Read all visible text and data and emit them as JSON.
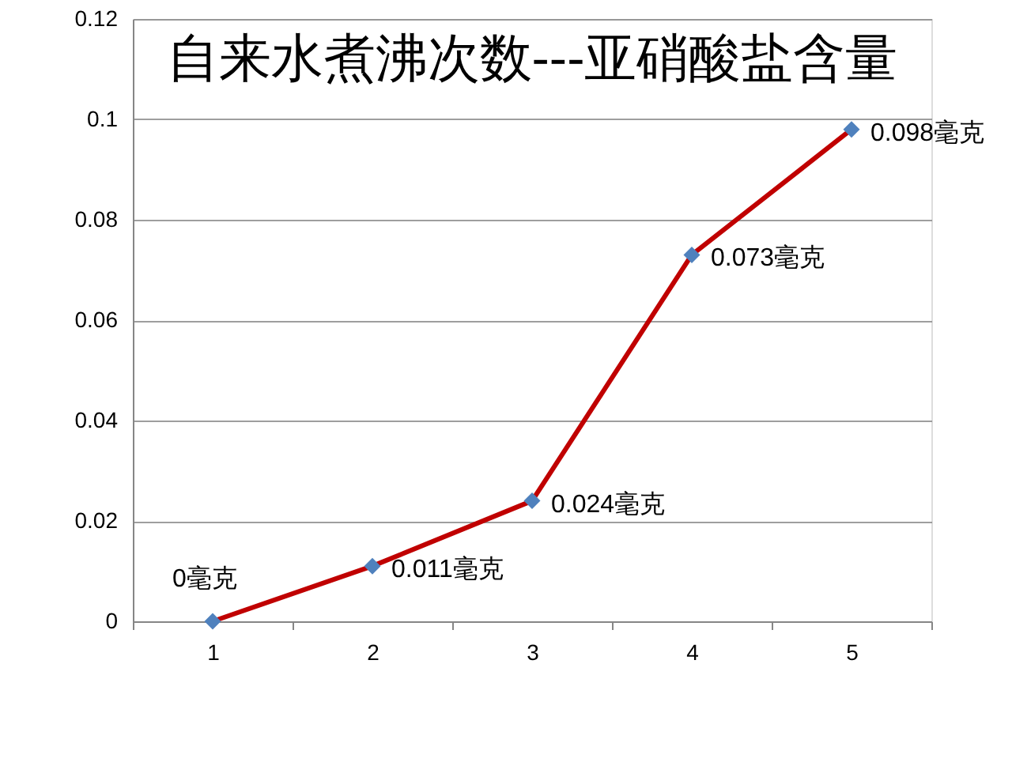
{
  "chart_data": {
    "type": "line",
    "title": "自来水煮沸次数---亚硝酸盐含量",
    "categories": [
      "1",
      "2",
      "3",
      "4",
      "5"
    ],
    "values": [
      0,
      0.011,
      0.024,
      0.073,
      0.098
    ],
    "color": "#c00000",
    "colors": [
      "#4f81bd",
      "#4f81bd",
      "#4f81bd",
      "#4f81bd",
      "#4f81bd"
    ],
    "value_labels": [
      "0毫克",
      "0.011毫克",
      "0.024毫克",
      "0.073毫克",
      "0.098毫克"
    ],
    "ylim": [
      0,
      0.12
    ],
    "yticks": [
      0,
      0.02,
      0.04,
      0.06,
      0.08,
      0.1,
      0.12
    ],
    "grid": "y",
    "marker": "diamond",
    "line_style": "solid"
  }
}
